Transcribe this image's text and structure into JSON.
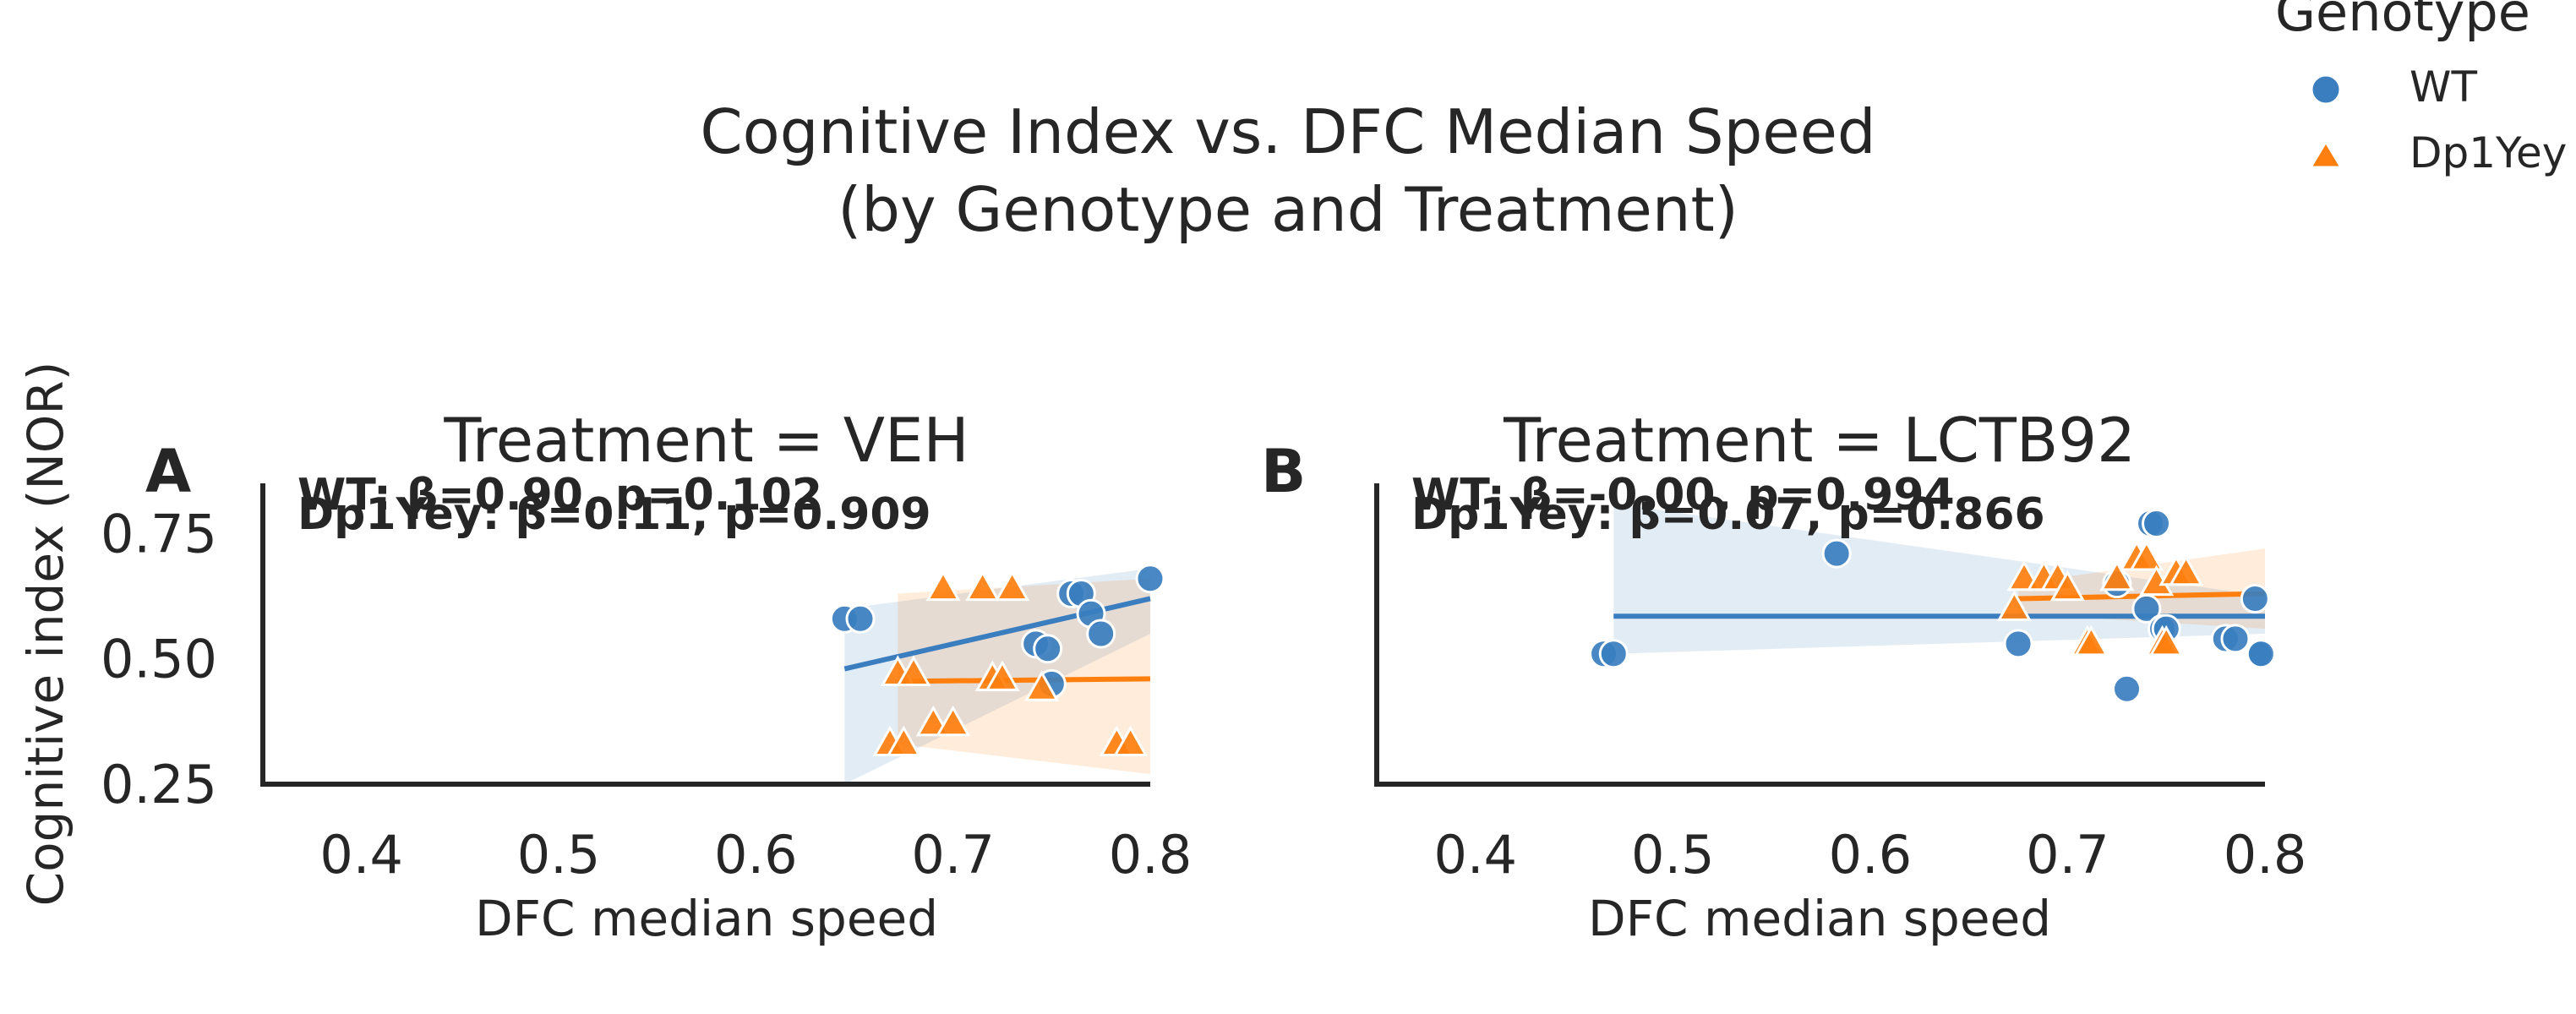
{
  "figure": {
    "title_line1": "Cognitive Index vs. DFC Median Speed",
    "title_line2": "(by Genotype and Treatment)",
    "shared_ylabel": "Cognitive index (NOR)"
  },
  "legend": {
    "title": "Genotype",
    "items": [
      {
        "label": "WT",
        "marker": "circle",
        "color": "#3a7ebf"
      },
      {
        "label": "Dp1Yey",
        "marker": "triangle",
        "color": "#ff7f0e"
      }
    ]
  },
  "colors": {
    "WT": "#3a7ebf",
    "Dp1Yey": "#ff7f0e",
    "axis": "#262626"
  },
  "chart_data": [
    {
      "type": "scatter",
      "panel_letter": "A",
      "title": "Treatment = VEH",
      "xlabel": "DFC median speed",
      "ylabel": "Cognitive index (NOR)",
      "xlim": [
        0.35,
        0.8
      ],
      "ylim": [
        0.25,
        0.85
      ],
      "xticks": [
        "0.4",
        "0.5",
        "0.6",
        "0.7",
        "0.8"
      ],
      "yticks": [
        "0.25",
        "0.50",
        "0.75"
      ],
      "annotations": [
        {
          "series": "WT",
          "text": "WT: β=0.90, p=0.102"
        },
        {
          "series": "Dp1Yey",
          "text": "Dp1Yey: β=0.11, p=0.909"
        }
      ],
      "series": [
        {
          "name": "WT",
          "marker": "circle",
          "x": [
            0.645,
            0.653,
            0.742,
            0.748,
            0.75,
            0.76,
            0.765,
            0.77,
            0.775,
            0.8
          ],
          "y": [
            0.58,
            0.58,
            0.53,
            0.52,
            0.45,
            0.63,
            0.63,
            0.59,
            0.55,
            0.66
          ],
          "fit": {
            "x": [
              0.645,
              0.8
            ],
            "y": [
              0.48,
              0.62
            ],
            "ci_lo": [
              0.25,
              0.55
            ],
            "ci_hi": [
              0.6,
              0.68
            ]
          }
        },
        {
          "name": "Dp1Yey",
          "marker": "triangle",
          "x": [
            0.668,
            0.672,
            0.675,
            0.68,
            0.69,
            0.695,
            0.7,
            0.715,
            0.72,
            0.725,
            0.73,
            0.745,
            0.783,
            0.79
          ],
          "y": [
            0.33,
            0.47,
            0.33,
            0.47,
            0.37,
            0.64,
            0.37,
            0.64,
            0.46,
            0.46,
            0.64,
            0.44,
            0.33,
            0.33
          ],
          "fit": {
            "x": [
              0.672,
              0.8
            ],
            "y": [
              0.455,
              0.46
            ],
            "ci_lo": [
              0.33,
              0.27
            ],
            "ci_hi": [
              0.63,
              0.66
            ]
          }
        }
      ]
    },
    {
      "type": "scatter",
      "panel_letter": "B",
      "title": "Treatment = LCTB92",
      "xlabel": "DFC median speed",
      "ylabel": "",
      "xlim": [
        0.35,
        0.8
      ],
      "ylim": [
        0.25,
        0.85
      ],
      "xticks": [
        "0.4",
        "0.5",
        "0.6",
        "0.7",
        "0.8"
      ],
      "yticks": [],
      "annotations": [
        {
          "series": "WT",
          "text": "WT: β=-0.00, p=0.994"
        },
        {
          "series": "Dp1Yey",
          "text": "Dp1Yey: β=0.07, p=0.866"
        }
      ],
      "series": [
        {
          "name": "WT",
          "marker": "circle",
          "x": [
            0.465,
            0.47,
            0.583,
            0.675,
            0.725,
            0.73,
            0.74,
            0.742,
            0.745,
            0.748,
            0.75,
            0.78,
            0.785,
            0.795,
            0.797,
            0.798
          ],
          "y": [
            0.51,
            0.51,
            0.71,
            0.53,
            0.65,
            0.44,
            0.6,
            0.77,
            0.77,
            0.56,
            0.56,
            0.54,
            0.54,
            0.62,
            0.51,
            0.51
          ],
          "fit": {
            "x": [
              0.47,
              0.8
            ],
            "y": [
              0.585,
              0.585
            ],
            "ci_lo": [
              0.51,
              0.55
            ],
            "ci_hi": [
              0.81,
              0.625
            ]
          }
        },
        {
          "name": "Dp1Yey",
          "marker": "triangle",
          "x": [
            0.673,
            0.678,
            0.688,
            0.695,
            0.7,
            0.71,
            0.712,
            0.725,
            0.735,
            0.74,
            0.745,
            0.748,
            0.75,
            0.755,
            0.76
          ],
          "y": [
            0.6,
            0.66,
            0.66,
            0.66,
            0.64,
            0.53,
            0.53,
            0.66,
            0.7,
            0.7,
            0.65,
            0.53,
            0.53,
            0.67,
            0.67
          ],
          "fit": {
            "x": [
              0.675,
              0.8
            ],
            "y": [
              0.62,
              0.63
            ],
            "ci_lo": [
              0.59,
              0.56
            ],
            "ci_hi": [
              0.65,
              0.72
            ]
          }
        }
      ]
    }
  ]
}
